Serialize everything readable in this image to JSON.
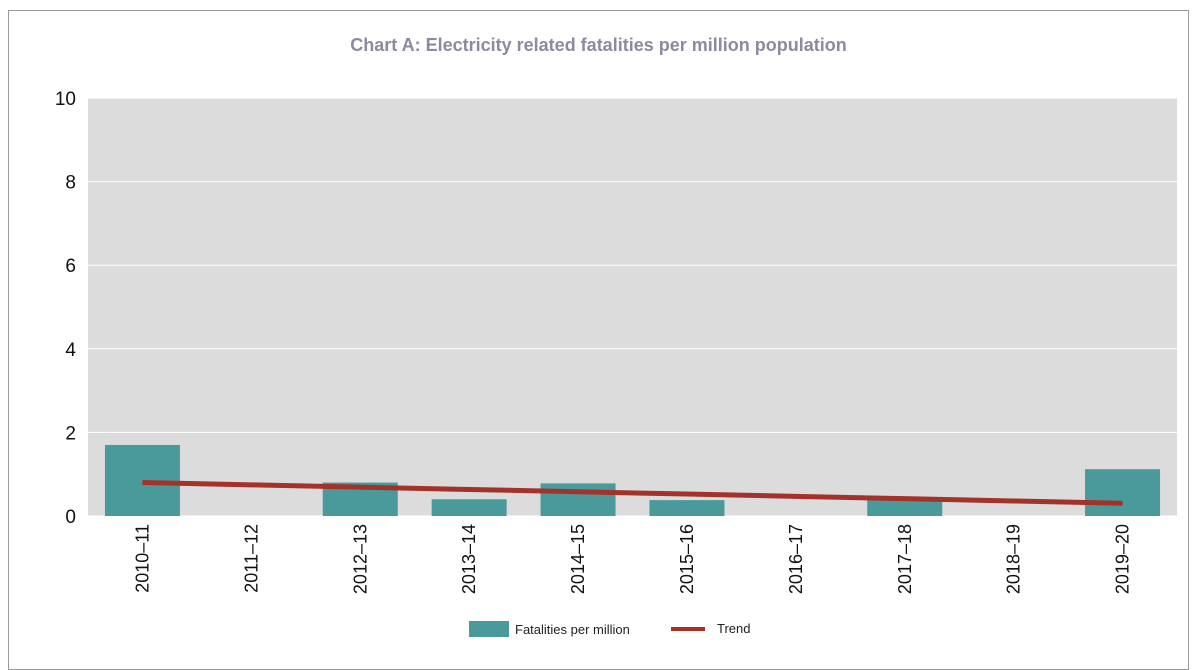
{
  "chart_data": {
    "type": "bar",
    "title": "Chart A: Electricity related fatalities per million population",
    "categories": [
      "2010–11",
      "2011–12",
      "2012–13",
      "2013–14",
      "2014–15",
      "2015–16",
      "2016–17",
      "2017–18",
      "2018–19",
      "2019–20"
    ],
    "series": [
      {
        "name": "Fatalities per million",
        "values": [
          1.7,
          0.0,
          0.8,
          0.4,
          0.78,
          0.38,
          0.0,
          0.4,
          0.0,
          1.12
        ]
      },
      {
        "name": "Trend",
        "type": "line",
        "values": [
          0.8,
          0.745,
          0.69,
          0.635,
          0.58,
          0.525,
          0.47,
          0.415,
          0.36,
          0.305
        ]
      }
    ],
    "ylim": [
      0,
      10
    ],
    "yticks": [
      0,
      2,
      4,
      6,
      8,
      10
    ],
    "grid": true,
    "legend": "bottom-center",
    "colors": {
      "bars": "#4a9a9c",
      "trend": "#a3322b",
      "plot_bg": "#dcdcdd",
      "gridline": "#ffffff"
    }
  }
}
